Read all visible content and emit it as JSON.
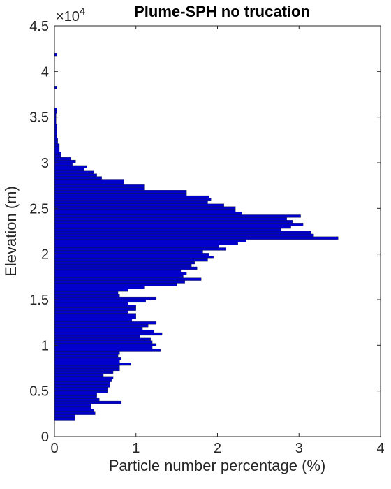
{
  "chart_data": {
    "type": "bar",
    "orientation": "horizontal",
    "title": "Plume-SPH no trucation",
    "xlabel": "Particle number percentage (%)",
    "ylabel": "Elevation (m)",
    "ylabel_multiplier": "×10",
    "ylabel_multiplier_exponent": "4",
    "xlim": [
      0,
      4
    ],
    "ylim": [
      0,
      45000
    ],
    "xticks": [
      "0",
      "1",
      "2",
      "3",
      "4"
    ],
    "yticks": [
      "0",
      "0.5",
      "1",
      "1.5",
      "2",
      "2.5",
      "3",
      "3.5",
      "4",
      "4.5"
    ],
    "bar_color": "#0000cc",
    "bin_width_m": 300,
    "elevation_bin_centers_m": [
      1950,
      2250,
      2550,
      2850,
      3150,
      3450,
      3750,
      4050,
      4350,
      4650,
      4950,
      5250,
      5550,
      5850,
      6150,
      6450,
      6750,
      7050,
      7350,
      7650,
      7950,
      8250,
      8550,
      8850,
      9150,
      9450,
      9750,
      10050,
      10350,
      10650,
      10950,
      11250,
      11550,
      11850,
      12150,
      12450,
      12750,
      13050,
      13350,
      13650,
      13950,
      14250,
      14550,
      14850,
      15150,
      15450,
      15750,
      16050,
      16350,
      16650,
      16950,
      17250,
      17550,
      17850,
      18150,
      18450,
      18750,
      19050,
      19350,
      19650,
      19950,
      20250,
      20550,
      20850,
      21150,
      21450,
      21750,
      22050,
      22350,
      22650,
      22950,
      23250,
      23550,
      23850,
      24150,
      24450,
      24750,
      25050,
      25350,
      25650,
      25950,
      26250,
      26550,
      26850,
      27150,
      27450,
      27750,
      28050,
      28350,
      28650,
      28950,
      29250,
      29550,
      29850,
      30150,
      30450,
      30750,
      31050,
      31350,
      31650,
      31950,
      32250,
      32550,
      32850,
      33150,
      33450,
      33750,
      34050,
      34350,
      34650,
      34950,
      35250,
      35550,
      35850,
      38250,
      41850
    ],
    "percentages": [
      0.25,
      0.25,
      0.5,
      0.48,
      0.45,
      0.45,
      0.82,
      0.55,
      0.52,
      0.52,
      0.65,
      0.65,
      0.68,
      0.68,
      0.7,
      0.72,
      0.6,
      0.72,
      0.8,
      0.8,
      0.94,
      0.8,
      0.82,
      0.78,
      0.8,
      1.3,
      1.2,
      1.25,
      1.2,
      1.18,
      1.05,
      1.32,
      1.22,
      1.08,
      1.15,
      1.25,
      0.95,
      1.0,
      1.0,
      0.9,
      1.0,
      1.0,
      0.9,
      1.12,
      1.25,
      0.8,
      0.78,
      0.9,
      1.1,
      1.5,
      1.6,
      1.8,
      1.58,
      1.62,
      1.55,
      1.75,
      1.68,
      1.72,
      1.88,
      1.95,
      1.9,
      1.82,
      2.1,
      2.02,
      2.25,
      2.35,
      3.48,
      3.18,
      3.15,
      2.78,
      2.9,
      3.05,
      2.92,
      2.85,
      3.02,
      2.3,
      2.22,
      2.22,
      2.08,
      1.88,
      1.92,
      1.9,
      1.62,
      1.62,
      1.1,
      1.1,
      0.85,
      0.85,
      0.58,
      0.52,
      0.48,
      0.36,
      0.4,
      0.22,
      0.26,
      0.2,
      0.08,
      0.08,
      0.06,
      0.06,
      0.06,
      0.04,
      0.04,
      0.03,
      0.03,
      0.03,
      0.03,
      0.03,
      0.02,
      0.02,
      0.02,
      0.02,
      0.03,
      0.03,
      0.03,
      0.03
    ]
  }
}
